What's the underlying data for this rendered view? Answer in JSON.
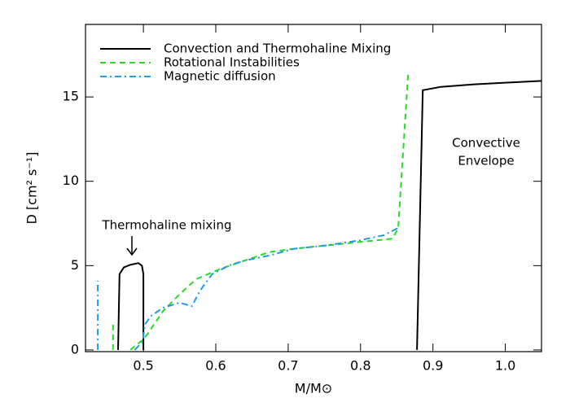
{
  "chart_data": {
    "type": "line",
    "xlabel": "M/M⊙",
    "ylabel": "D [cm² s⁻¹]",
    "xlim": [
      0.42,
      1.05
    ],
    "ylim": [
      -0.1,
      19.3
    ],
    "xticks": [
      0.5,
      0.6,
      0.7,
      0.8,
      0.9,
      {
        "value": 1,
        "label": "1.0"
      }
    ],
    "yticks": [
      0,
      5,
      10,
      15
    ],
    "legend": "upper left",
    "annotations": [
      "Thermohaline mixing",
      "Convective",
      "Envelope"
    ],
    "series": [
      {
        "name": "Convection and Thermohaline Mixing",
        "color": "#000000",
        "style": "solid",
        "x": [
          0.465,
          0.467,
          0.473,
          0.482,
          0.493,
          0.498,
          0.5,
          0.5,
          0.7,
          0.878,
          0.886,
          0.911,
          0.957,
          1.002,
          1.05
        ],
        "values": [
          0,
          4.5,
          4.9,
          5.05,
          5.15,
          5.0,
          4.5,
          0,
          null,
          0,
          15.4,
          15.6,
          15.75,
          15.85,
          15.95
        ]
      },
      {
        "name": "Rotational Instabilities",
        "color": "#22dd22",
        "style": "dashed",
        "x": [
          0.458,
          0.458,
          0.47,
          0.482,
          0.499,
          0.505,
          0.527,
          0.55,
          0.573,
          0.606,
          0.64,
          0.674,
          0.708,
          0.753,
          0.799,
          0.844,
          0.852,
          0.866
        ],
        "values": [
          0,
          1.5,
          null,
          0,
          0.6,
          0.9,
          2.3,
          3.3,
          4.2,
          4.8,
          5.3,
          5.8,
          6.0,
          6.2,
          6.4,
          6.6,
          7.2,
          16.5
        ]
      },
      {
        "name": "Magnetic diffusion",
        "color": "#1e9be8",
        "style": "dashdot",
        "x": [
          0.437,
          0.437,
          0.46,
          0.488,
          0.499,
          0.502,
          0.51,
          0.527,
          0.55,
          0.567,
          0.578,
          0.595,
          0.618,
          0.64,
          0.674,
          0.708,
          0.753,
          0.799,
          0.832,
          0.855
        ],
        "values": [
          0,
          4.1,
          null,
          0,
          0.5,
          1.5,
          2.0,
          2.5,
          2.8,
          2.6,
          3.5,
          4.5,
          5.0,
          5.3,
          5.6,
          6.0,
          6.2,
          6.5,
          6.8,
          7.3
        ]
      }
    ]
  }
}
